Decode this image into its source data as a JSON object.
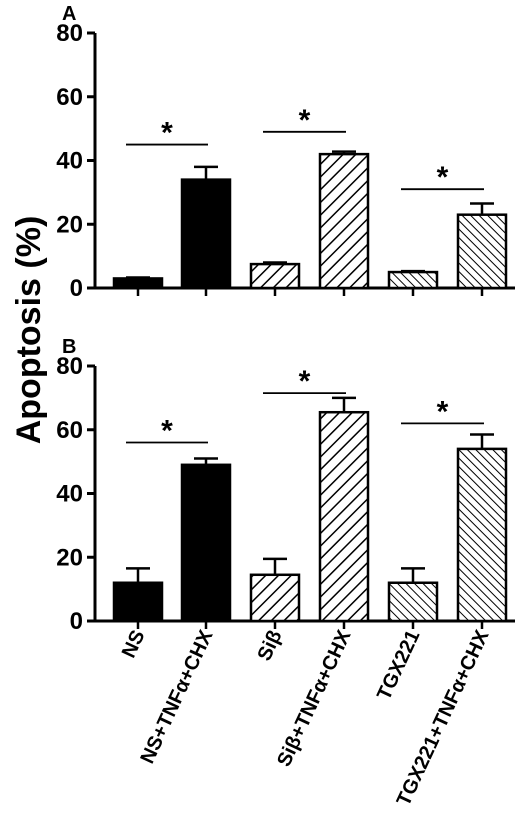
{
  "chart_data": {
    "type": "bar",
    "ylabel": "Apoptosis (%)",
    "categories": [
      "NS",
      "NS+TNFα+CHX",
      "Siβ",
      "Siβ+TNFα+CHX",
      "TGX221",
      "TGX221+TNFα+CHX"
    ],
    "bar_fills": [
      "solid",
      "solid",
      "hatch-fwd",
      "hatch-fwd",
      "hatch-back",
      "hatch-back"
    ],
    "panels": [
      {
        "label": "A",
        "ylim": [
          0,
          80
        ],
        "yticks": [
          "0",
          "20",
          "40",
          "60",
          "80"
        ],
        "values": [
          3,
          34,
          7.5,
          42,
          5,
          23
        ],
        "errors": [
          0.3,
          4,
          0.5,
          0.8,
          0.3,
          3.5
        ],
        "significance": [
          {
            "from": 0,
            "to": 1,
            "level": 45,
            "mark": "*"
          },
          {
            "from": 2,
            "to": 3,
            "level": 49,
            "mark": "*"
          },
          {
            "from": 4,
            "to": 5,
            "level": 31,
            "mark": "*"
          }
        ]
      },
      {
        "label": "B",
        "ylim": [
          0,
          80
        ],
        "yticks": [
          "0",
          "20",
          "40",
          "60",
          "80"
        ],
        "values": [
          12,
          49,
          14.5,
          65.5,
          12,
          54
        ],
        "errors": [
          4.5,
          2,
          5,
          4.5,
          4.5,
          4.5
        ],
        "significance": [
          {
            "from": 0,
            "to": 1,
            "level": 56,
            "mark": "*"
          },
          {
            "from": 2,
            "to": 3,
            "level": 71.5,
            "mark": "*"
          },
          {
            "from": 4,
            "to": 5,
            "level": 62,
            "mark": "*"
          }
        ]
      }
    ],
    "grid": false,
    "legend": "none"
  }
}
